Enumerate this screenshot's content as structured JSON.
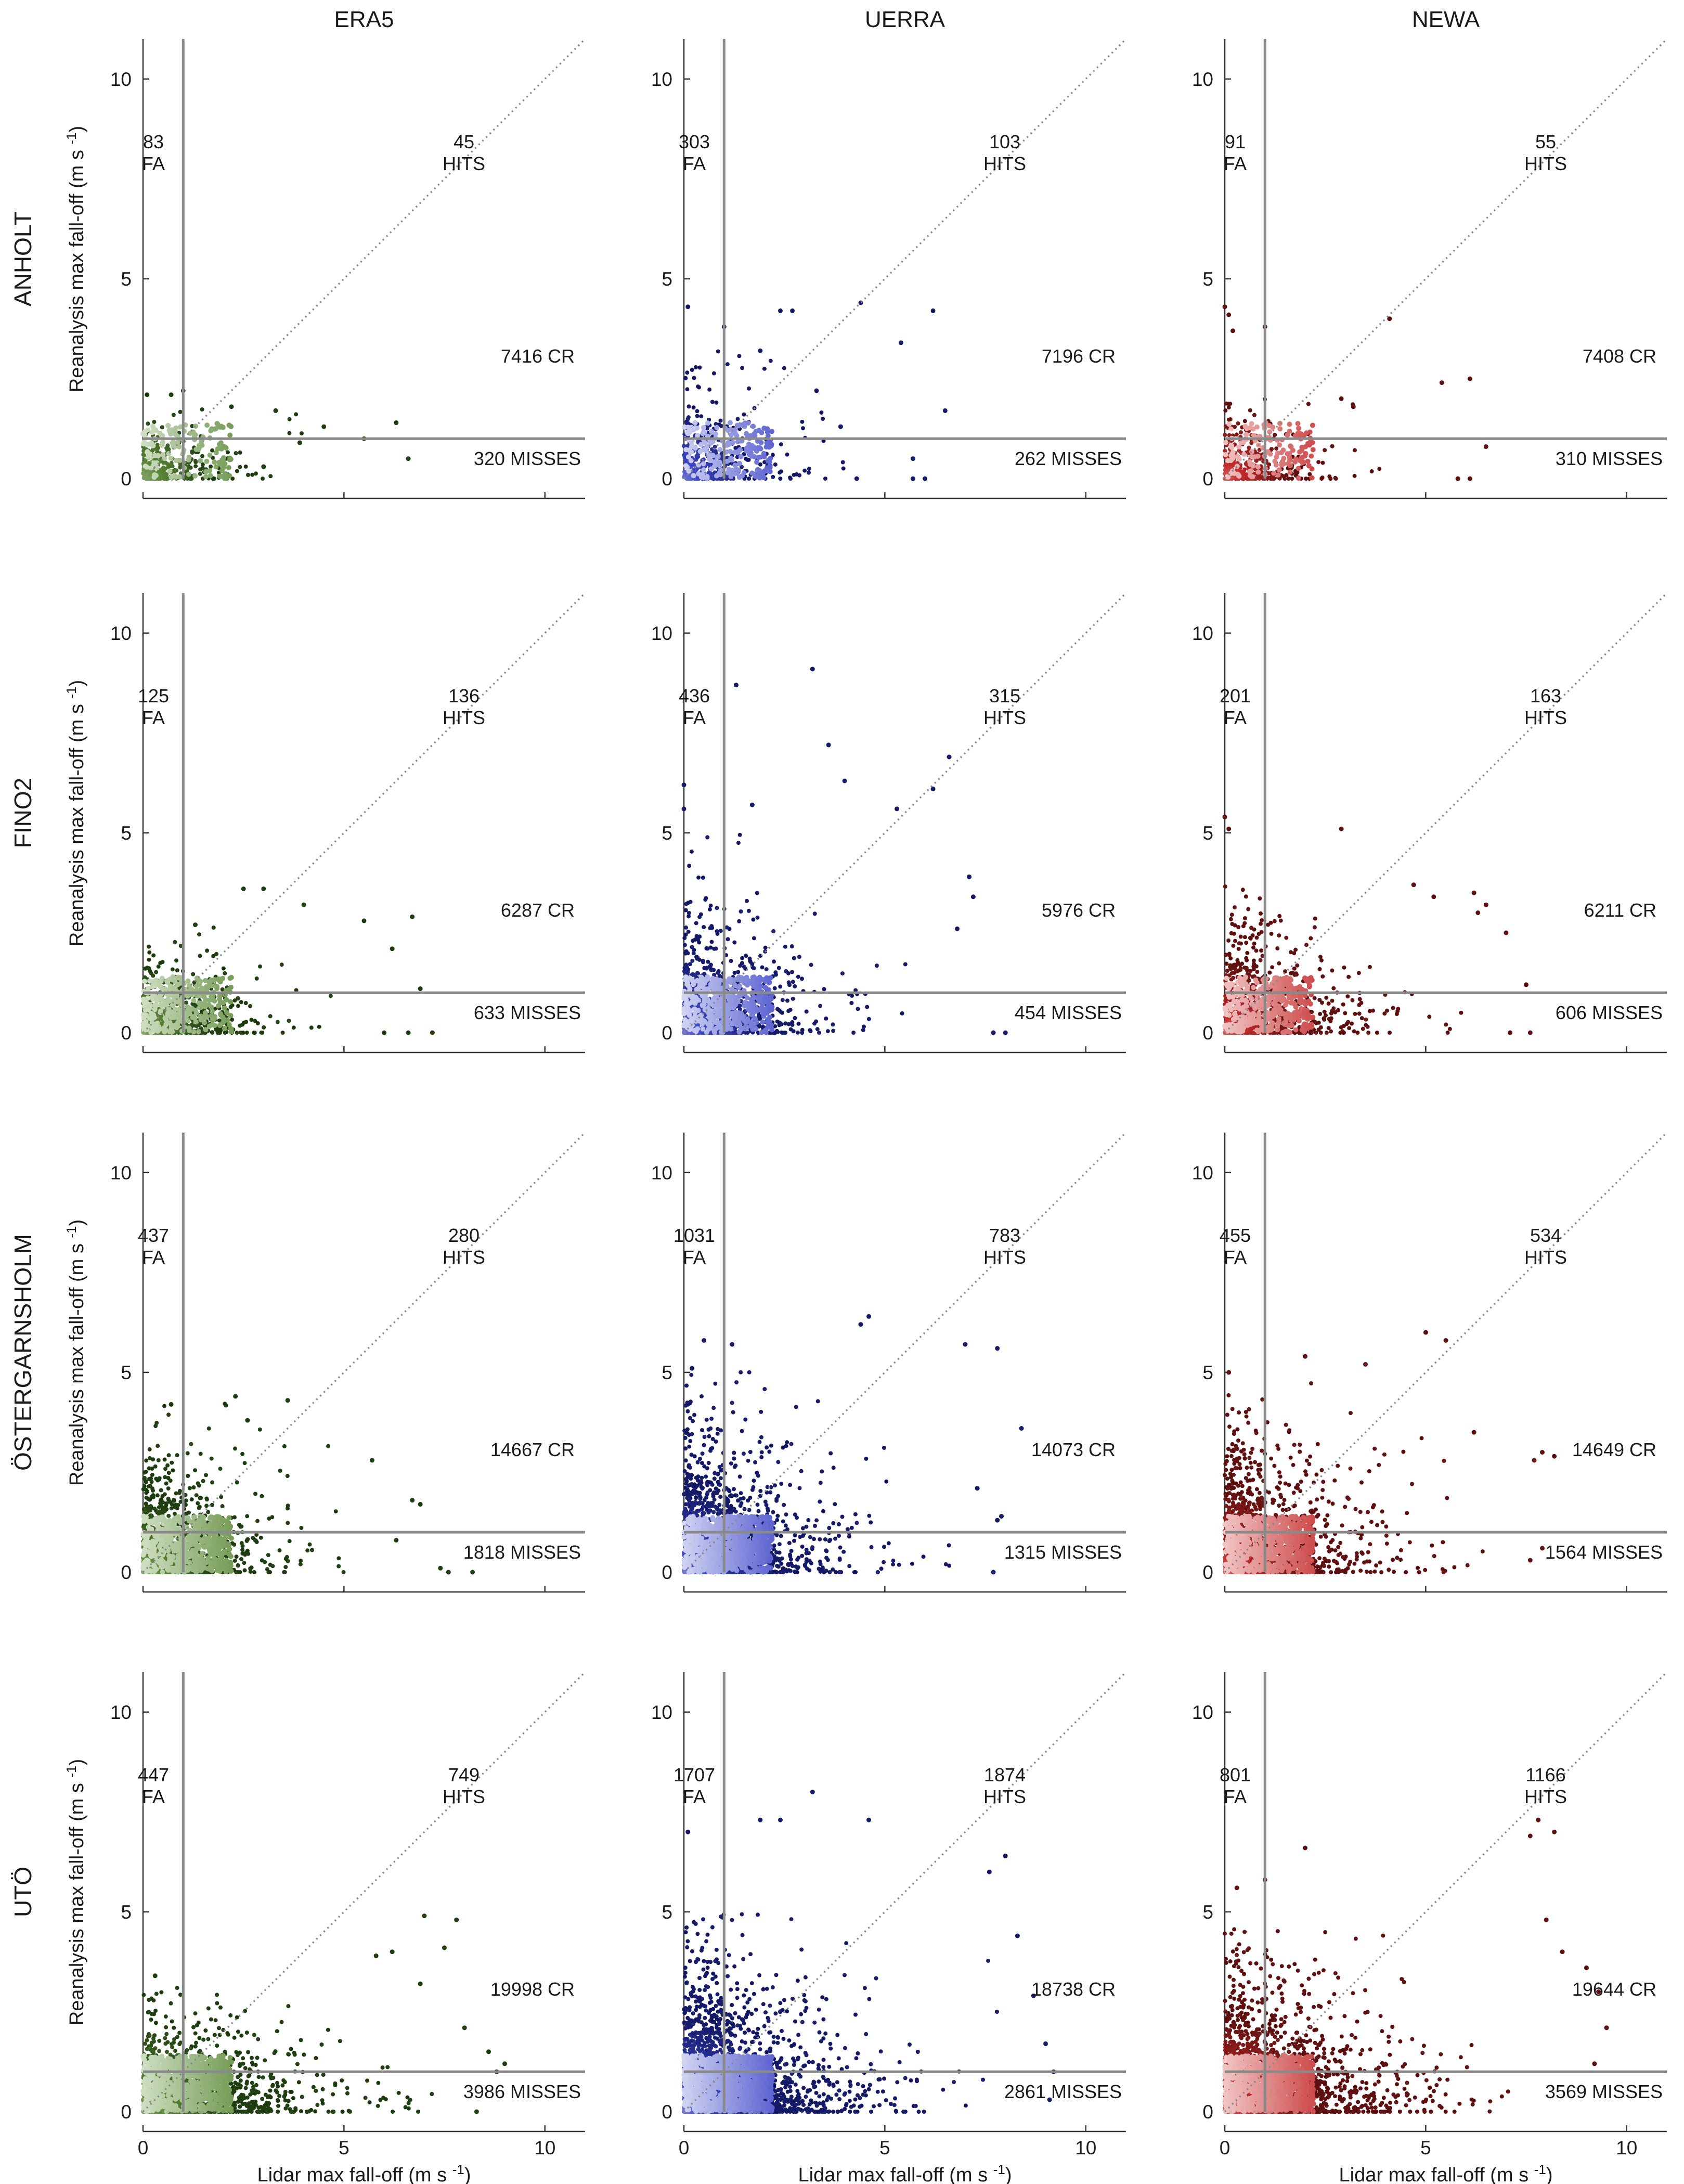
{
  "figure": {
    "columns": [
      "ERA5",
      "UERRA",
      "NEWA"
    ],
    "rows": [
      "ANHOLT",
      "FINO2",
      "ÖSTERGARNSHOLM",
      "UTÖ"
    ],
    "xlabel": "Lidar max fall-off (m s",
    "ylabel": "Reanalysis max fall-off (m s",
    "unit_sup": "-1",
    "unit_close": ")",
    "ticks": [
      "0",
      "5",
      "10"
    ],
    "threshold": 1,
    "colors": {
      "ERA5": {
        "light": "#dbe7d0",
        "mid": "#5d8a3a",
        "dark": "#1e3d10"
      },
      "UERRA": {
        "light": "#dfe2f6",
        "mid": "#3d45c8",
        "dark": "#141a66"
      },
      "NEWA": {
        "light": "#f6d5d5",
        "mid": "#c42a2a",
        "dark": "#5e1010"
      },
      "axis": "#333333",
      "threshold_line": "#8a8a8a",
      "diagonal": "#8a8a8a"
    }
  },
  "chart_data": [
    {
      "type": "scatter",
      "row": "ANHOLT",
      "model": "ERA5",
      "xlim": [
        0,
        11
      ],
      "ylim": [
        0,
        11
      ],
      "threshold": 1,
      "counts": {
        "FA": 83,
        "HITS": 45,
        "CR": 7416,
        "MISSES": 320
      },
      "labels": {
        "fa_num": "83",
        "fa": "FA",
        "hits_num": "45",
        "hits": "HITS",
        "cr": "7416 CR",
        "misses": "320 MISSES"
      },
      "dist": {
        "xmax": 4.4,
        "ymax": 2.0,
        "xs": 1.4,
        "ys": 0.55,
        "n": 280
      },
      "outliers": [
        [
          1.0,
          2.2
        ],
        [
          0.7,
          2.1
        ],
        [
          0.1,
          2.1
        ],
        [
          2.2,
          1.8
        ],
        [
          3.3,
          1.7
        ],
        [
          4.5,
          1.3
        ],
        [
          5.5,
          1.0
        ],
        [
          6.3,
          1.4
        ],
        [
          6.6,
          0.5
        ],
        [
          3.9,
          0.9
        ],
        [
          3.0,
          0.3
        ]
      ]
    },
    {
      "type": "scatter",
      "row": "ANHOLT",
      "model": "UERRA",
      "xlim": [
        0,
        11
      ],
      "ylim": [
        0,
        11
      ],
      "threshold": 1,
      "counts": {
        "FA": 303,
        "HITS": 103,
        "CR": 7196,
        "MISSES": 262
      },
      "labels": {
        "fa_num": "303",
        "fa": "FA",
        "hits_num": "103",
        "hits": "HITS",
        "cr": "7196 CR",
        "misses": "262 MISSES"
      },
      "dist": {
        "xmax": 4.0,
        "ymax": 3.3,
        "xs": 1.4,
        "ys": 1.0,
        "n": 380
      },
      "outliers": [
        [
          0.1,
          4.3
        ],
        [
          1.0,
          3.8
        ],
        [
          2.4,
          4.2
        ],
        [
          2.7,
          4.2
        ],
        [
          4.4,
          4.4
        ],
        [
          6.2,
          4.2
        ],
        [
          5.4,
          3.4
        ],
        [
          6.5,
          1.7
        ],
        [
          5.7,
          0.5
        ],
        [
          3.9,
          1.3
        ],
        [
          5.7,
          0.0
        ],
        [
          4.3,
          0.0
        ],
        [
          6.0,
          0.0
        ],
        [
          1.9,
          3.2
        ],
        [
          3.3,
          2.2
        ]
      ]
    },
    {
      "type": "scatter",
      "row": "ANHOLT",
      "model": "NEWA",
      "xlim": [
        0,
        11
      ],
      "ylim": [
        0,
        11
      ],
      "threshold": 1,
      "counts": {
        "FA": 91,
        "HITS": 55,
        "CR": 7408,
        "MISSES": 310
      },
      "labels": {
        "fa_num": "91",
        "fa": "FA",
        "hits_num": "55",
        "hits": "HITS",
        "cr": "7408 CR",
        "misses": "310 MISSES"
      },
      "dist": {
        "xmax": 4.0,
        "ymax": 2.6,
        "xs": 1.4,
        "ys": 0.75,
        "n": 300
      },
      "outliers": [
        [
          0.0,
          4.3
        ],
        [
          0.1,
          4.1
        ],
        [
          0.2,
          3.7
        ],
        [
          1.0,
          3.8
        ],
        [
          4.1,
          4.0
        ],
        [
          6.1,
          2.5
        ],
        [
          5.4,
          2.4
        ],
        [
          6.5,
          0.8
        ],
        [
          5.8,
          0.0
        ],
        [
          6.1,
          0.0
        ],
        [
          3.2,
          1.8
        ],
        [
          2.9,
          2.0
        ]
      ]
    },
    {
      "type": "scatter",
      "row": "FINO2",
      "model": "ERA5",
      "xlim": [
        0,
        11
      ],
      "ylim": [
        0,
        11
      ],
      "threshold": 1,
      "counts": {
        "FA": 125,
        "HITS": 136,
        "CR": 6287,
        "MISSES": 633
      },
      "labels": {
        "fa_num": "125",
        "fa": "FA",
        "hits_num": "136",
        "hits": "HITS",
        "cr": "6287 CR",
        "misses": "633 MISSES"
      },
      "dist": {
        "xmax": 5.5,
        "ymax": 2.8,
        "xs": 1.7,
        "ys": 0.75,
        "n": 650
      },
      "outliers": [
        [
          2.5,
          3.6
        ],
        [
          3.0,
          3.6
        ],
        [
          4.0,
          3.2
        ],
        [
          6.7,
          2.9
        ],
        [
          6.2,
          2.1
        ],
        [
          5.5,
          2.8
        ],
        [
          7.2,
          0.0
        ],
        [
          6.9,
          1.1
        ],
        [
          6.6,
          0.0
        ],
        [
          6.0,
          0.0
        ],
        [
          1.3,
          2.7
        ]
      ]
    },
    {
      "type": "scatter",
      "row": "FINO2",
      "model": "UERRA",
      "xlim": [
        0,
        11
      ],
      "ylim": [
        0,
        11
      ],
      "threshold": 1,
      "counts": {
        "FA": 436,
        "HITS": 315,
        "CR": 5976,
        "MISSES": 454
      },
      "labels": {
        "fa_num": "436",
        "fa": "FA",
        "hits_num": "315",
        "hits": "HITS",
        "cr": "5976 CR",
        "misses": "454 MISSES"
      },
      "dist": {
        "xmax": 6.5,
        "ymax": 5.0,
        "xs": 1.8,
        "ys": 1.3,
        "n": 900
      },
      "outliers": [
        [
          3.2,
          9.1
        ],
        [
          1.3,
          8.7
        ],
        [
          3.6,
          7.2
        ],
        [
          6.6,
          6.9
        ],
        [
          6.2,
          6.1
        ],
        [
          5.3,
          5.6
        ],
        [
          7.1,
          3.9
        ],
        [
          7.2,
          3.4
        ],
        [
          6.8,
          2.6
        ],
        [
          7.7,
          0.0
        ],
        [
          8.0,
          0.0
        ],
        [
          0.0,
          6.2
        ],
        [
          0.0,
          5.6
        ],
        [
          1.7,
          5.7
        ],
        [
          4.0,
          6.3
        ]
      ]
    },
    {
      "type": "scatter",
      "row": "FINO2",
      "model": "NEWA",
      "xlim": [
        0,
        11
      ],
      "ylim": [
        0,
        11
      ],
      "threshold": 1,
      "counts": {
        "FA": 201,
        "HITS": 163,
        "CR": 6211,
        "MISSES": 606
      },
      "labels": {
        "fa_num": "201",
        "fa": "FA",
        "hits_num": "163",
        "hits": "HITS",
        "cr": "6211 CR",
        "misses": "606 MISSES"
      },
      "dist": {
        "xmax": 6.0,
        "ymax": 4.0,
        "xs": 1.8,
        "ys": 1.1,
        "n": 800
      },
      "outliers": [
        [
          0.0,
          5.4
        ],
        [
          0.1,
          5.1
        ],
        [
          2.9,
          5.1
        ],
        [
          6.2,
          3.5
        ],
        [
          6.5,
          3.2
        ],
        [
          7.0,
          2.5
        ],
        [
          6.3,
          3.0
        ],
        [
          7.5,
          1.2
        ],
        [
          7.6,
          0.0
        ],
        [
          7.1,
          0.0
        ],
        [
          5.2,
          3.4
        ],
        [
          4.7,
          3.7
        ]
      ]
    },
    {
      "type": "scatter",
      "row": "ÖSTERGARNSHOLM",
      "model": "ERA5",
      "xlim": [
        0,
        11
      ],
      "ylim": [
        0,
        11
      ],
      "threshold": 1,
      "counts": {
        "FA": 437,
        "HITS": 280,
        "CR": 14667,
        "MISSES": 1818
      },
      "labels": {
        "fa_num": "437",
        "fa": "FA",
        "hits_num": "280",
        "hits": "HITS",
        "cr": "14667 CR",
        "misses": "1818 MISSES"
      },
      "dist": {
        "xmax": 6.0,
        "ymax": 4.4,
        "xs": 1.5,
        "ys": 1.1,
        "n": 1200
      },
      "outliers": [
        [
          2.3,
          4.4
        ],
        [
          3.6,
          4.3
        ],
        [
          0.7,
          4.2
        ],
        [
          5.7,
          2.8
        ],
        [
          6.7,
          1.8
        ],
        [
          6.9,
          1.7
        ],
        [
          7.4,
          0.1
        ],
        [
          7.6,
          0.0
        ],
        [
          8.2,
          0.0
        ],
        [
          6.3,
          0.8
        ],
        [
          2.6,
          3.8
        ]
      ]
    },
    {
      "type": "scatter",
      "row": "ÖSTERGARNSHOLM",
      "model": "UERRA",
      "xlim": [
        0,
        11
      ],
      "ylim": [
        0,
        11
      ],
      "threshold": 1,
      "counts": {
        "FA": 1031,
        "HITS": 783,
        "CR": 14073,
        "MISSES": 1315
      },
      "labels": {
        "fa_num": "1031",
        "fa": "FA",
        "hits_num": "783",
        "hits": "HITS",
        "cr": "14073 CR",
        "misses": "1315 MISSES"
      },
      "dist": {
        "xmax": 6.8,
        "ymax": 5.3,
        "xs": 1.8,
        "ys": 1.4,
        "n": 1600
      },
      "outliers": [
        [
          4.6,
          6.4
        ],
        [
          4.4,
          6.2
        ],
        [
          7.0,
          5.7
        ],
        [
          7.8,
          5.6
        ],
        [
          8.4,
          3.6
        ],
        [
          7.8,
          1.3
        ],
        [
          7.9,
          1.4
        ],
        [
          7.3,
          2.1
        ],
        [
          7.7,
          0.0
        ],
        [
          0.5,
          5.8
        ],
        [
          0.2,
          5.1
        ],
        [
          1.2,
          5.7
        ]
      ]
    },
    {
      "type": "scatter",
      "row": "ÖSTERGARNSHOLM",
      "model": "NEWA",
      "xlim": [
        0,
        11
      ],
      "ylim": [
        0,
        11
      ],
      "threshold": 1,
      "counts": {
        "FA": 455,
        "HITS": 534,
        "CR": 14649,
        "MISSES": 1564
      },
      "labels": {
        "fa_num": "455",
        "fa": "FA",
        "hits_num": "534",
        "hits": "HITS",
        "cr": "14649 CR",
        "misses": "1564 MISSES"
      },
      "dist": {
        "xmax": 7.0,
        "ymax": 4.9,
        "xs": 1.8,
        "ys": 1.3,
        "n": 1500
      },
      "outliers": [
        [
          5.0,
          6.0
        ],
        [
          5.5,
          5.8
        ],
        [
          2.0,
          5.4
        ],
        [
          3.5,
          5.2
        ],
        [
          7.9,
          3.0
        ],
        [
          8.2,
          2.9
        ],
        [
          7.7,
          2.8
        ],
        [
          7.6,
          0.3
        ],
        [
          7.9,
          0.6
        ],
        [
          0.1,
          5.0
        ],
        [
          6.2,
          3.5
        ]
      ]
    },
    {
      "type": "scatter",
      "row": "UTÖ",
      "model": "ERA5",
      "xlim": [
        0,
        11
      ],
      "ylim": [
        0,
        11
      ],
      "threshold": 1,
      "counts": {
        "FA": 447,
        "HITS": 749,
        "CR": 19998,
        "MISSES": 3986
      },
      "labels": {
        "fa_num": "447",
        "fa": "FA",
        "hits_num": "749",
        "hits": "HITS",
        "cr": "19998 CR",
        "misses": "3986 MISSES"
      },
      "dist": {
        "xmax": 7.5,
        "ymax": 3.2,
        "xs": 2.1,
        "ys": 0.85,
        "n": 1600
      },
      "outliers": [
        [
          7.0,
          4.9
        ],
        [
          7.8,
          4.8
        ],
        [
          6.2,
          4.0
        ],
        [
          7.5,
          4.1
        ],
        [
          5.8,
          3.9
        ],
        [
          6.9,
          3.2
        ],
        [
          8.0,
          2.1
        ],
        [
          8.6,
          1.5
        ],
        [
          9.0,
          1.2
        ],
        [
          8.8,
          1.0
        ],
        [
          8.3,
          0.0
        ],
        [
          0.3,
          3.4
        ]
      ]
    },
    {
      "type": "scatter",
      "row": "UTÖ",
      "model": "UERRA",
      "xlim": [
        0,
        11
      ],
      "ylim": [
        0,
        11
      ],
      "threshold": 1,
      "counts": {
        "FA": 1707,
        "HITS": 1874,
        "CR": 18738,
        "MISSES": 2861
      },
      "labels": {
        "fa_num": "1707",
        "fa": "FA",
        "hits_num": "1874",
        "hits": "HITS",
        "cr": "18738 CR",
        "misses": "2861 MISSES"
      },
      "dist": {
        "xmax": 7.8,
        "ymax": 5.2,
        "xs": 2.1,
        "ys": 1.4,
        "n": 2200
      },
      "outliers": [
        [
          3.2,
          8.0
        ],
        [
          1.9,
          7.3
        ],
        [
          2.4,
          7.3
        ],
        [
          4.6,
          7.3
        ],
        [
          0.1,
          7.0
        ],
        [
          8.0,
          6.4
        ],
        [
          7.6,
          6.0
        ],
        [
          8.3,
          4.4
        ],
        [
          8.7,
          2.9
        ],
        [
          9.0,
          1.7
        ],
        [
          9.2,
          1.0
        ],
        [
          9.1,
          0.3
        ]
      ]
    },
    {
      "type": "scatter",
      "row": "UTÖ",
      "model": "NEWA",
      "xlim": [
        0,
        11
      ],
      "ylim": [
        0,
        11
      ],
      "threshold": 1,
      "counts": {
        "FA": 801,
        "HITS": 1166,
        "CR": 19644,
        "MISSES": 3569
      },
      "labels": {
        "fa_num": "801",
        "fa": "FA",
        "hits_num": "1166",
        "hits": "HITS",
        "cr": "19644 CR",
        "misses": "3569 MISSES"
      },
      "dist": {
        "xmax": 8.0,
        "ymax": 4.8,
        "xs": 2.2,
        "ys": 1.3,
        "n": 2000
      },
      "outliers": [
        [
          8.2,
          7.0
        ],
        [
          7.8,
          7.3
        ],
        [
          7.6,
          6.9
        ],
        [
          2.0,
          6.6
        ],
        [
          0.3,
          5.6
        ],
        [
          8.0,
          4.8
        ],
        [
          8.4,
          4.0
        ],
        [
          9.0,
          3.6
        ],
        [
          9.3,
          3.0
        ],
        [
          9.5,
          2.1
        ],
        [
          9.2,
          1.2
        ],
        [
          1.0,
          5.8
        ]
      ]
    }
  ]
}
